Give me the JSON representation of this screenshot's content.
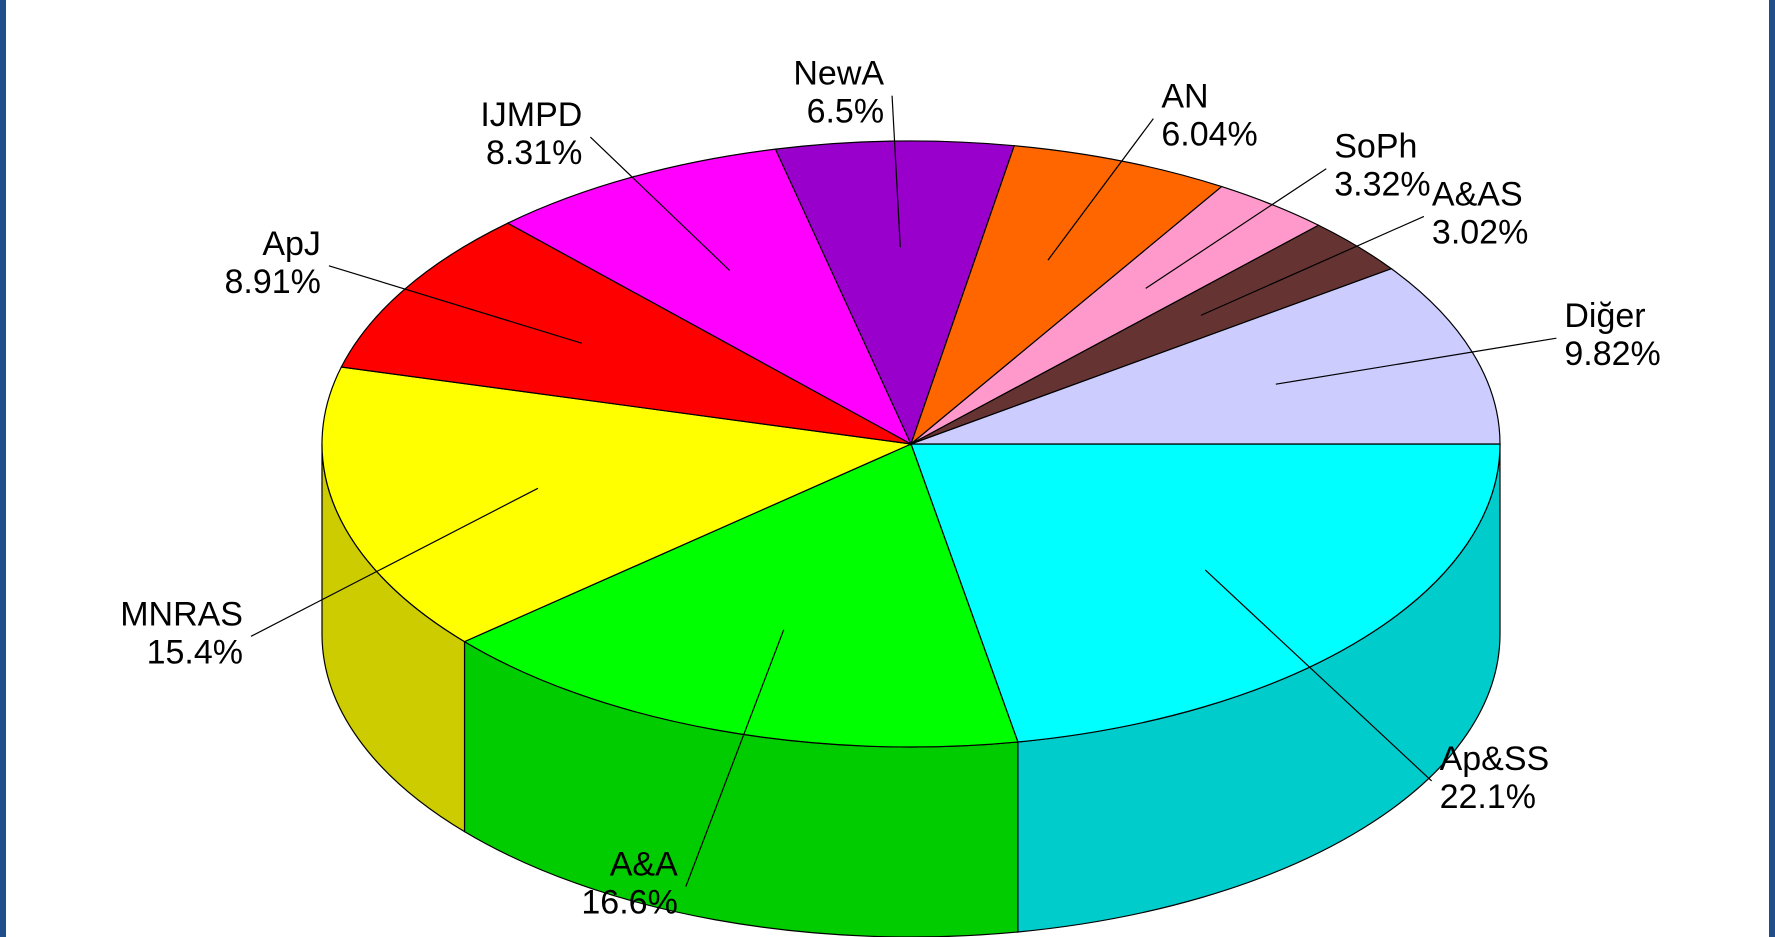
{
  "chart_data": {
    "type": "pie3d",
    "categories": [
      "Ap&SS",
      "A&A",
      "MNRAS",
      "ApJ",
      "IJMPD",
      "NewA",
      "AN",
      "SoPh",
      "A&AS",
      "Diğer"
    ],
    "values": [
      22.1,
      16.6,
      15.4,
      8.91,
      8.31,
      6.5,
      6.04,
      3.32,
      3.02,
      9.82
    ],
    "value_labels": [
      "22.1%",
      "16.6%",
      "15.4%",
      "8.91%",
      "8.31%",
      "6.5%",
      "6.04%",
      "3.32%",
      "3.02%",
      "9.82%"
    ],
    "colors": [
      "#00ffff",
      "#00ff00",
      "#ffff00",
      "#ff0000",
      "#ff00ff",
      "#9900cc",
      "#ff6600",
      "#ff99cc",
      "#663333",
      "#ccccff"
    ]
  }
}
